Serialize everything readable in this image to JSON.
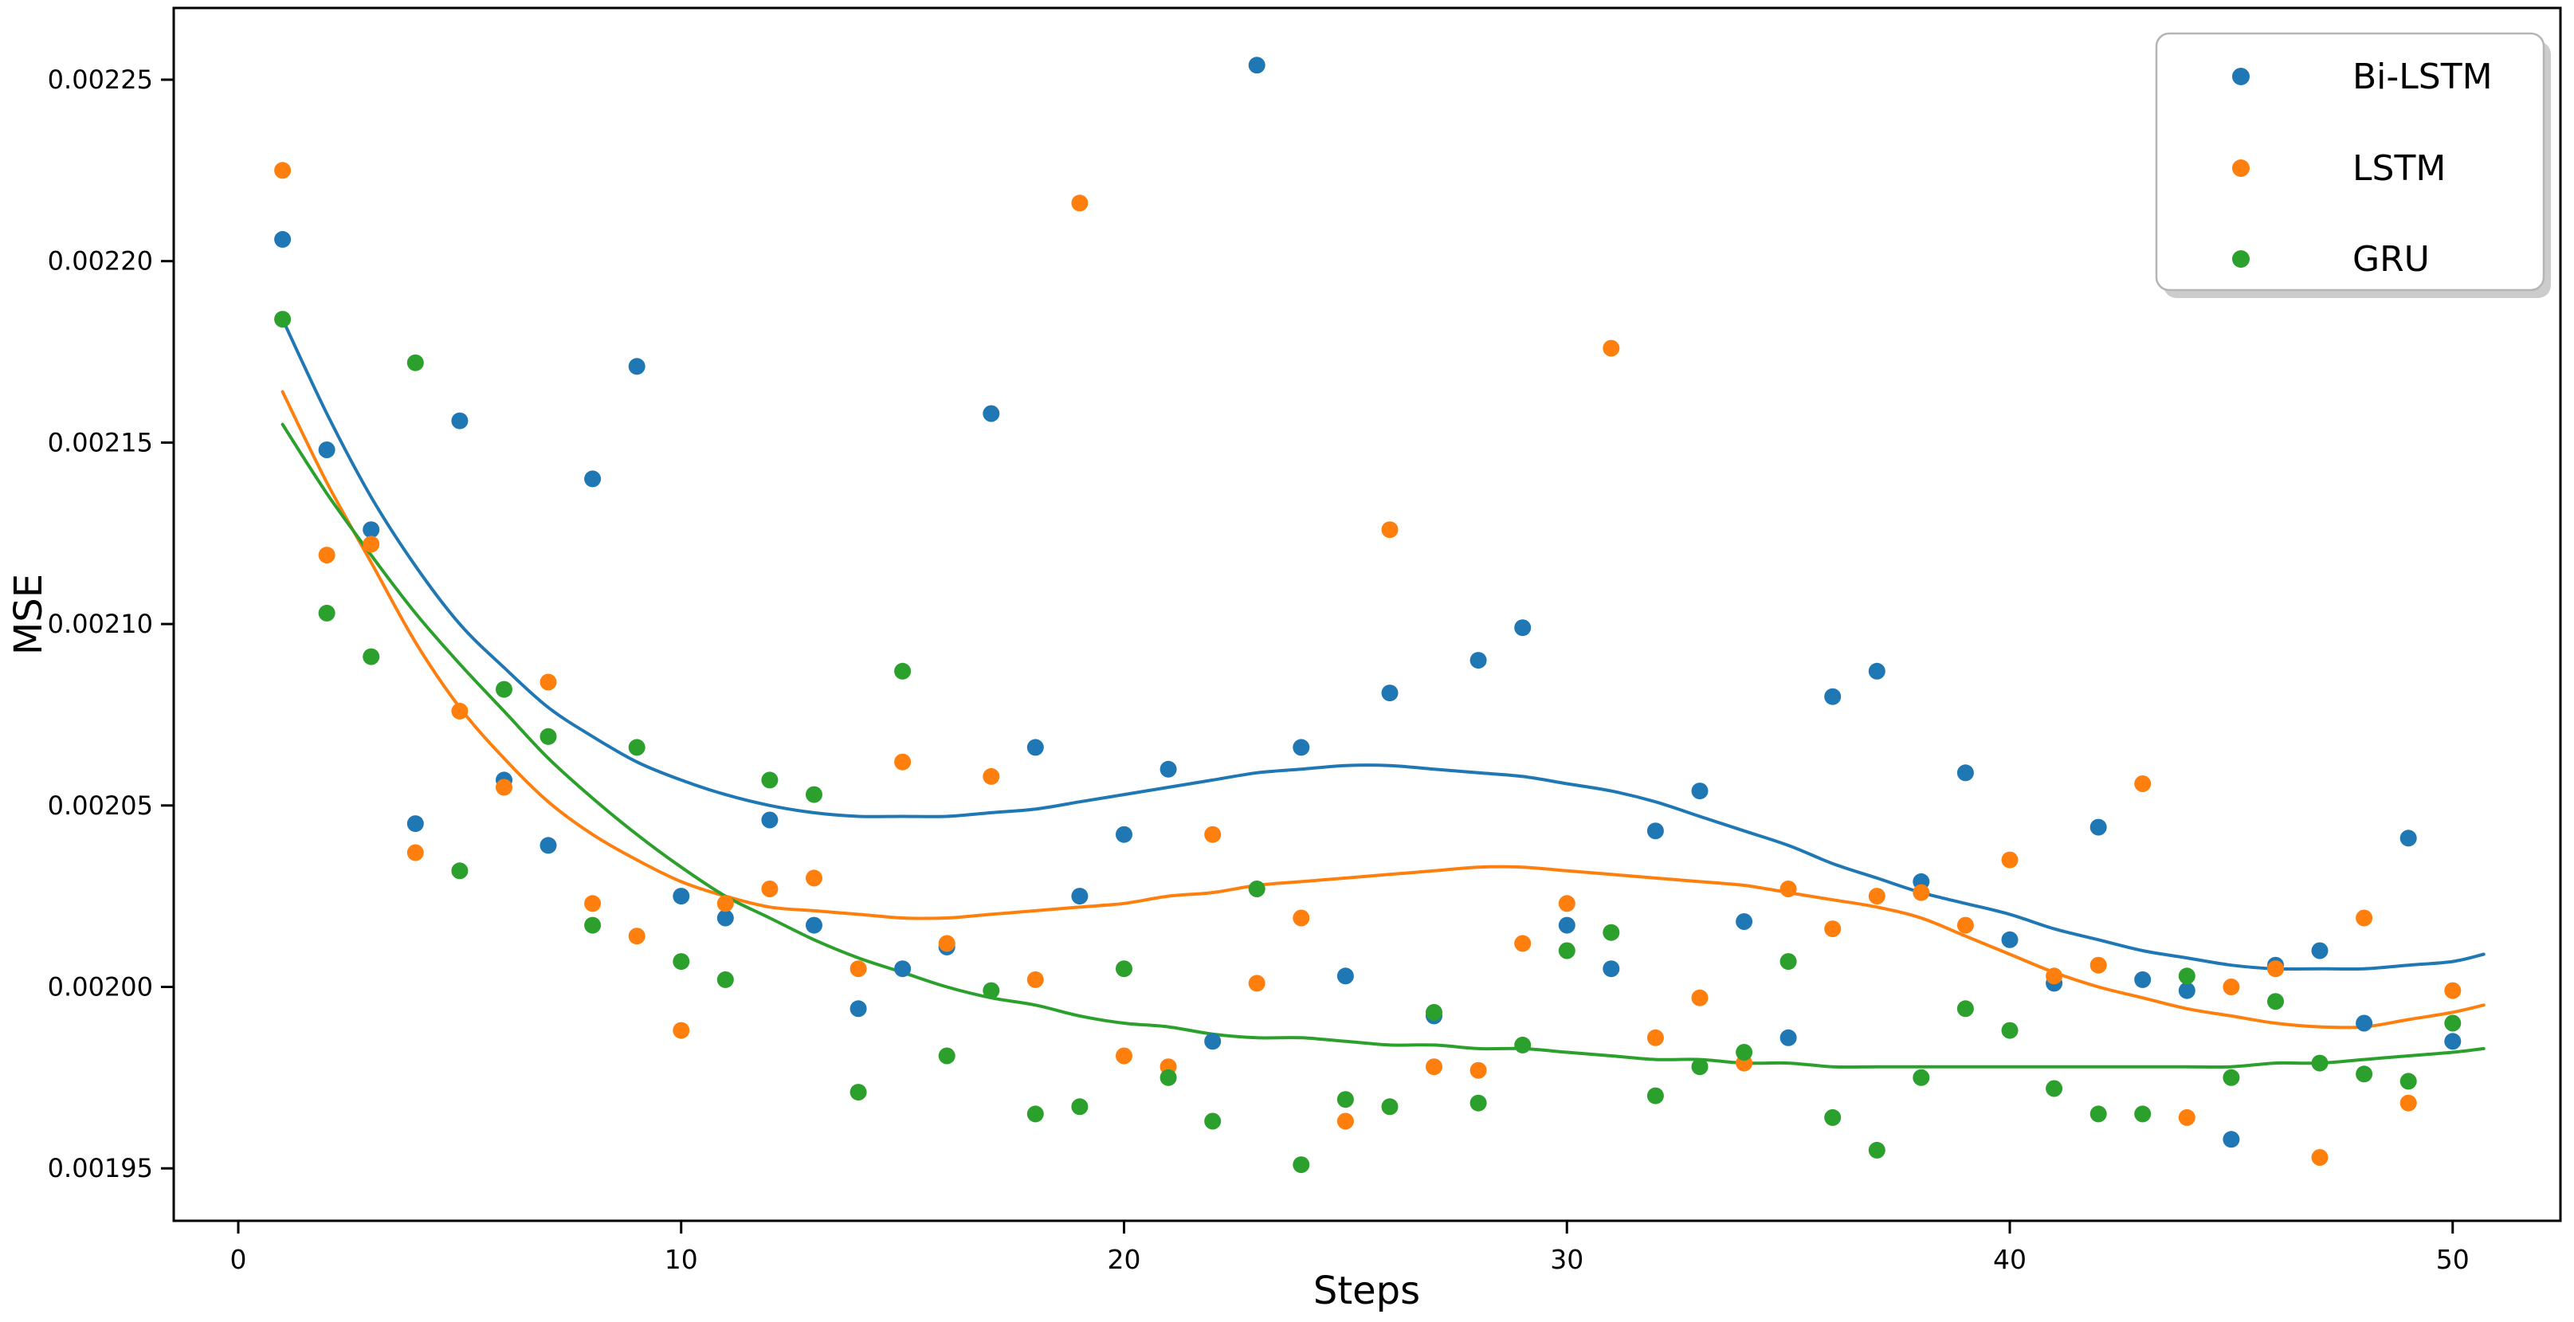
{
  "figure": {
    "background": "#ffffff",
    "plot_border_color": "#000000"
  },
  "axes": {
    "xlabel": "Steps",
    "ylabel": "MSE",
    "x_ticks": [
      {
        "value": 0,
        "label": "0"
      },
      {
        "value": 10,
        "label": "10"
      },
      {
        "value": 20,
        "label": "20"
      },
      {
        "value": 30,
        "label": "30"
      },
      {
        "value": 40,
        "label": "40"
      },
      {
        "value": 50,
        "label": "50"
      }
    ],
    "y_ticks": [
      {
        "value": 0.00195,
        "label": "0.00195"
      },
      {
        "value": 0.002,
        "label": "0.00200"
      },
      {
        "value": 0.00205,
        "label": "0.00205"
      },
      {
        "value": 0.0021,
        "label": "0.00210"
      },
      {
        "value": 0.00215,
        "label": "0.00215"
      },
      {
        "value": 0.0022,
        "label": "0.00220"
      },
      {
        "value": 0.00225,
        "label": "0.00225"
      }
    ]
  },
  "legend": {
    "position": "upper right",
    "entries": [
      {
        "label": "Bi-LSTM",
        "color": "#1f77b4"
      },
      {
        "label": "LSTM",
        "color": "#ff7f0e"
      },
      {
        "label": "GRU",
        "color": "#2ca02c"
      }
    ]
  },
  "chart_data": {
    "type": "scatter",
    "title": "",
    "xlabel": "Steps",
    "ylabel": "MSE",
    "xlim": [
      -1.5,
      52.4
    ],
    "ylim": [
      0.001936,
      0.00227
    ],
    "grid": false,
    "legend_position": "upper right",
    "x": [
      1,
      2,
      3,
      4,
      5,
      6,
      7,
      8,
      9,
      10,
      11,
      12,
      13,
      14,
      15,
      16,
      17,
      18,
      19,
      20,
      21,
      22,
      23,
      24,
      25,
      26,
      27,
      28,
      29,
      30,
      31,
      32,
      33,
      34,
      35,
      36,
      37,
      38,
      39,
      40,
      41,
      42,
      43,
      44,
      45,
      46,
      47,
      48,
      49,
      50
    ],
    "series": [
      {
        "name": "Bi-LSTM",
        "color": "#1f77b4",
        "marker_radius": 10.5,
        "values": [
          0.002206,
          0.002148,
          0.002126,
          0.002045,
          0.002156,
          0.002057,
          0.002039,
          0.00214,
          0.002171,
          0.002025,
          0.002019,
          0.002046,
          0.002017,
          0.001994,
          0.002005,
          0.002011,
          0.002158,
          0.002066,
          0.002025,
          0.002042,
          0.00206,
          0.001985,
          0.002254,
          0.002066,
          0.002003,
          0.002081,
          0.001992,
          0.00209,
          0.002099,
          0.002017,
          0.002005,
          0.002043,
          0.002054,
          0.002018,
          0.001986,
          0.00208,
          0.002087,
          0.002029,
          0.002059,
          0.002013,
          0.002001,
          0.002044,
          0.002002,
          0.001999,
          0.001958,
          0.002006,
          0.00201,
          0.00199,
          0.002041,
          0.001985
        ],
        "trend": [
          [
            1,
            0.002184
          ],
          [
            2,
            0.002158
          ],
          [
            3,
            0.002135
          ],
          [
            4,
            0.002116
          ],
          [
            5,
            0.0021
          ],
          [
            6,
            0.002088
          ],
          [
            7,
            0.002077
          ],
          [
            8,
            0.002069
          ],
          [
            9,
            0.002062
          ],
          [
            10,
            0.002057
          ],
          [
            11,
            0.002053
          ],
          [
            12,
            0.00205
          ],
          [
            13,
            0.002048
          ],
          [
            14,
            0.002047
          ],
          [
            15,
            0.002047
          ],
          [
            16,
            0.002047
          ],
          [
            17,
            0.002048
          ],
          [
            18,
            0.002049
          ],
          [
            19,
            0.002051
          ],
          [
            20,
            0.002053
          ],
          [
            21,
            0.002055
          ],
          [
            22,
            0.002057
          ],
          [
            23,
            0.002059
          ],
          [
            24,
            0.00206
          ],
          [
            25,
            0.002061
          ],
          [
            26,
            0.002061
          ],
          [
            27,
            0.00206
          ],
          [
            28,
            0.002059
          ],
          [
            29,
            0.002058
          ],
          [
            30,
            0.002056
          ],
          [
            31,
            0.002054
          ],
          [
            32,
            0.002051
          ],
          [
            33,
            0.002047
          ],
          [
            34,
            0.002043
          ],
          [
            35,
            0.002039
          ],
          [
            36,
            0.002034
          ],
          [
            37,
            0.00203
          ],
          [
            38,
            0.002026
          ],
          [
            39,
            0.002023
          ],
          [
            40,
            0.00202
          ],
          [
            41,
            0.002016
          ],
          [
            42,
            0.002013
          ],
          [
            43,
            0.00201
          ],
          [
            44,
            0.002008
          ],
          [
            45,
            0.002006
          ],
          [
            46,
            0.002005
          ],
          [
            47,
            0.002005
          ],
          [
            48,
            0.002005
          ],
          [
            49,
            0.002006
          ],
          [
            50,
            0.002007
          ],
          [
            50.7,
            0.002009
          ]
        ]
      },
      {
        "name": "LSTM",
        "color": "#ff7f0e",
        "marker_radius": 10.5,
        "values": [
          0.002225,
          0.002119,
          0.002122,
          0.002037,
          0.002076,
          0.002055,
          0.002084,
          0.002023,
          0.002014,
          0.001988,
          0.002023,
          0.002027,
          0.00203,
          0.002005,
          0.002062,
          0.002012,
          0.002058,
          0.002002,
          0.002216,
          0.001981,
          0.001978,
          0.002042,
          0.002001,
          0.002019,
          0.001963,
          0.002126,
          0.001978,
          0.001977,
          0.002012,
          0.002023,
          0.002176,
          0.001986,
          0.001997,
          0.001979,
          0.002027,
          0.002016,
          0.002025,
          0.002026,
          0.002017,
          0.002035,
          0.002003,
          0.002006,
          0.002056,
          0.001964,
          0.002,
          0.002005,
          0.001953,
          0.002019,
          0.001968,
          0.001999
        ],
        "trend": [
          [
            1,
            0.002164
          ],
          [
            2,
            0.002139
          ],
          [
            3,
            0.002117
          ],
          [
            4,
            0.002095
          ],
          [
            5,
            0.002077
          ],
          [
            6,
            0.002063
          ],
          [
            7,
            0.002051
          ],
          [
            8,
            0.002042
          ],
          [
            9,
            0.002035
          ],
          [
            10,
            0.002029
          ],
          [
            11,
            0.002025
          ],
          [
            12,
            0.002022
          ],
          [
            13,
            0.002021
          ],
          [
            14,
            0.00202
          ],
          [
            15,
            0.002019
          ],
          [
            16,
            0.002019
          ],
          [
            17,
            0.00202
          ],
          [
            18,
            0.002021
          ],
          [
            19,
            0.002022
          ],
          [
            20,
            0.002023
          ],
          [
            21,
            0.002025
          ],
          [
            22,
            0.002026
          ],
          [
            23,
            0.002028
          ],
          [
            24,
            0.002029
          ],
          [
            25,
            0.00203
          ],
          [
            26,
            0.002031
          ],
          [
            27,
            0.002032
          ],
          [
            28,
            0.002033
          ],
          [
            29,
            0.002033
          ],
          [
            30,
            0.002032
          ],
          [
            31,
            0.002031
          ],
          [
            32,
            0.00203
          ],
          [
            33,
            0.002029
          ],
          [
            34,
            0.002028
          ],
          [
            35,
            0.002026
          ],
          [
            36,
            0.002024
          ],
          [
            37,
            0.002022
          ],
          [
            38,
            0.002019
          ],
          [
            39,
            0.002014
          ],
          [
            40,
            0.002009
          ],
          [
            41,
            0.002004
          ],
          [
            42,
            0.002
          ],
          [
            43,
            0.001997
          ],
          [
            44,
            0.001994
          ],
          [
            45,
            0.001992
          ],
          [
            46,
            0.00199
          ],
          [
            47,
            0.001989
          ],
          [
            48,
            0.001989
          ],
          [
            49,
            0.001991
          ],
          [
            50,
            0.001993
          ],
          [
            50.7,
            0.001995
          ]
        ]
      },
      {
        "name": "GRU",
        "color": "#2ca02c",
        "marker_radius": 10.5,
        "values": [
          0.002184,
          0.002103,
          0.002091,
          0.002172,
          0.002032,
          0.002082,
          0.002069,
          0.002017,
          0.002066,
          0.002007,
          0.002002,
          0.002057,
          0.002053,
          0.001971,
          0.002087,
          0.001981,
          0.001999,
          0.001965,
          0.001967,
          0.002005,
          0.001975,
          0.001963,
          0.002027,
          0.001951,
          0.001969,
          0.001967,
          0.001993,
          0.001968,
          0.001984,
          0.00201,
          0.002015,
          0.00197,
          0.001978,
          0.001982,
          0.002007,
          0.001964,
          0.001955,
          0.001975,
          0.001994,
          0.001988,
          0.001972,
          0.001965,
          0.001965,
          0.002003,
          0.001975,
          0.001996,
          0.001979,
          0.001976,
          0.001974,
          0.00199
        ],
        "trend": [
          [
            1,
            0.002155
          ],
          [
            2,
            0.002136
          ],
          [
            3,
            0.002119
          ],
          [
            4,
            0.002103
          ],
          [
            5,
            0.002089
          ],
          [
            6,
            0.002076
          ],
          [
            7,
            0.002063
          ],
          [
            8,
            0.002052
          ],
          [
            9,
            0.002042
          ],
          [
            10,
            0.002033
          ],
          [
            11,
            0.002025
          ],
          [
            12,
            0.002019
          ],
          [
            13,
            0.002013
          ],
          [
            14,
            0.002008
          ],
          [
            15,
            0.002004
          ],
          [
            16,
            0.002
          ],
          [
            17,
            0.001997
          ],
          [
            18,
            0.001995
          ],
          [
            19,
            0.001992
          ],
          [
            20,
            0.00199
          ],
          [
            21,
            0.001989
          ],
          [
            22,
            0.001987
          ],
          [
            23,
            0.001986
          ],
          [
            24,
            0.001986
          ],
          [
            25,
            0.001985
          ],
          [
            26,
            0.001984
          ],
          [
            27,
            0.001984
          ],
          [
            28,
            0.001983
          ],
          [
            29,
            0.001983
          ],
          [
            30,
            0.001982
          ],
          [
            31,
            0.001981
          ],
          [
            32,
            0.00198
          ],
          [
            33,
            0.00198
          ],
          [
            34,
            0.001979
          ],
          [
            35,
            0.001979
          ],
          [
            36,
            0.001978
          ],
          [
            37,
            0.001978
          ],
          [
            38,
            0.001978
          ],
          [
            39,
            0.001978
          ],
          [
            40,
            0.001978
          ],
          [
            41,
            0.001978
          ],
          [
            42,
            0.001978
          ],
          [
            43,
            0.001978
          ],
          [
            44,
            0.001978
          ],
          [
            45,
            0.001978
          ],
          [
            46,
            0.001979
          ],
          [
            47,
            0.001979
          ],
          [
            48,
            0.00198
          ],
          [
            49,
            0.001981
          ],
          [
            50,
            0.001982
          ],
          [
            50.7,
            0.001983
          ]
        ]
      }
    ]
  }
}
